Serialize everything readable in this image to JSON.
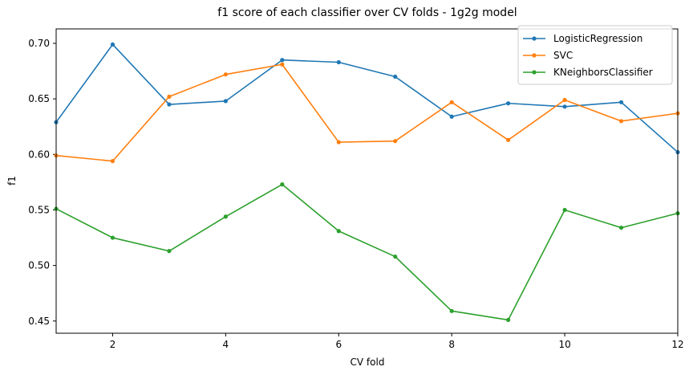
{
  "chart_data": {
    "type": "line",
    "title": "f1 score of each classifier over CV folds - 1g2g model",
    "xlabel": "CV fold",
    "ylabel": "f1",
    "xlim": [
      1,
      12
    ],
    "ylim": [
      0.439,
      0.713
    ],
    "xticks": [
      2,
      4,
      6,
      8,
      10,
      12
    ],
    "yticks": [
      0.45,
      0.5,
      0.55,
      0.6,
      0.65,
      0.7
    ],
    "x": [
      1,
      2,
      3,
      4,
      5,
      6,
      7,
      8,
      9,
      10,
      11,
      12
    ],
    "grid": false,
    "legend_position": "top-right",
    "series": [
      {
        "name": "LogisticRegression",
        "color": "#1f77b4",
        "values": [
          0.629,
          0.699,
          0.645,
          0.648,
          0.685,
          0.683,
          0.67,
          0.634,
          0.646,
          0.643,
          0.647,
          0.602
        ]
      },
      {
        "name": "SVC",
        "color": "#ff7f0e",
        "values": [
          0.599,
          0.594,
          0.652,
          0.672,
          0.681,
          0.611,
          0.612,
          0.647,
          0.613,
          0.649,
          0.63,
          0.637
        ]
      },
      {
        "name": "KNeighborsClassifier",
        "color": "#2ca02c",
        "values": [
          0.551,
          0.525,
          0.513,
          0.544,
          0.573,
          0.531,
          0.508,
          0.459,
          0.451,
          0.55,
          0.534,
          0.547
        ]
      }
    ]
  }
}
